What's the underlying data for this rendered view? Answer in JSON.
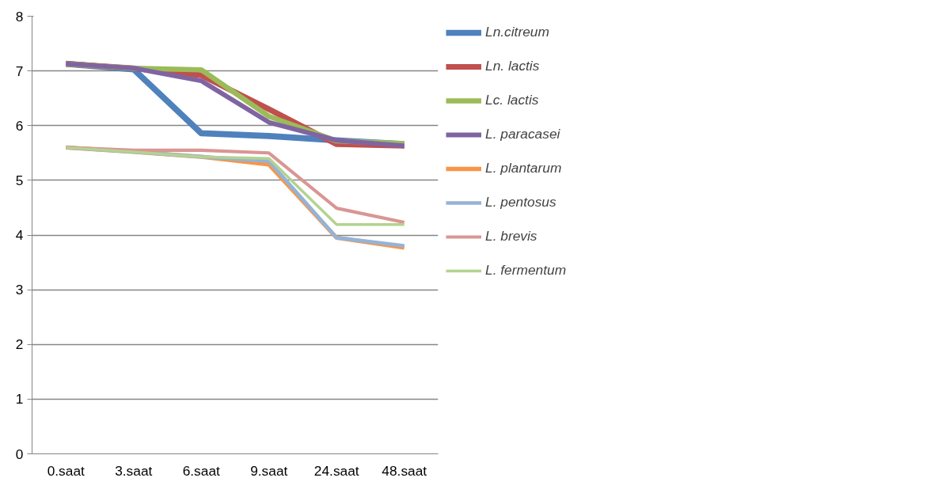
{
  "chart_data": {
    "type": "line",
    "categories": [
      "0.saat",
      "3.saat",
      "6.saat",
      "9.saat",
      "24.saat",
      "48.saat"
    ],
    "ylim": [
      0,
      8
    ],
    "yticks": [
      0,
      1,
      2,
      3,
      4,
      5,
      6,
      7,
      8
    ],
    "grid": "y",
    "legend": "right",
    "line_style": "solid",
    "marker": "none",
    "series": [
      {
        "name": "Ln.citreum",
        "color": "#4f81bd",
        "values": [
          7.13,
          7.03,
          5.86,
          5.81,
          5.73,
          5.66
        ]
      },
      {
        "name": "Ln. lactis",
        "color": "#c0504d",
        "values": [
          7.13,
          7.05,
          6.92,
          6.3,
          5.66,
          5.63
        ]
      },
      {
        "name": "Lc. lactis",
        "color": "#9bbb59",
        "values": [
          7.13,
          7.05,
          7.02,
          6.17,
          5.72,
          5.67
        ]
      },
      {
        "name": "L. paracasei",
        "color": "#8064a2",
        "values": [
          7.13,
          7.05,
          6.82,
          6.06,
          5.73,
          5.63
        ]
      },
      {
        "name": "L. plantarum",
        "color": "#f79646",
        "values": [
          5.6,
          5.52,
          5.43,
          5.29,
          3.95,
          3.77
        ]
      },
      {
        "name": "L. pentosus",
        "color": "#95b3d7",
        "values": [
          5.6,
          5.52,
          5.43,
          5.35,
          3.95,
          3.8
        ]
      },
      {
        "name": "L. brevis",
        "color": "#d99694",
        "values": [
          5.6,
          5.55,
          5.55,
          5.5,
          4.49,
          4.23
        ]
      },
      {
        "name": "L. fermentum",
        "color": "#b3d38f",
        "values": [
          5.6,
          5.52,
          5.43,
          5.4,
          4.19,
          4.19
        ]
      }
    ]
  }
}
